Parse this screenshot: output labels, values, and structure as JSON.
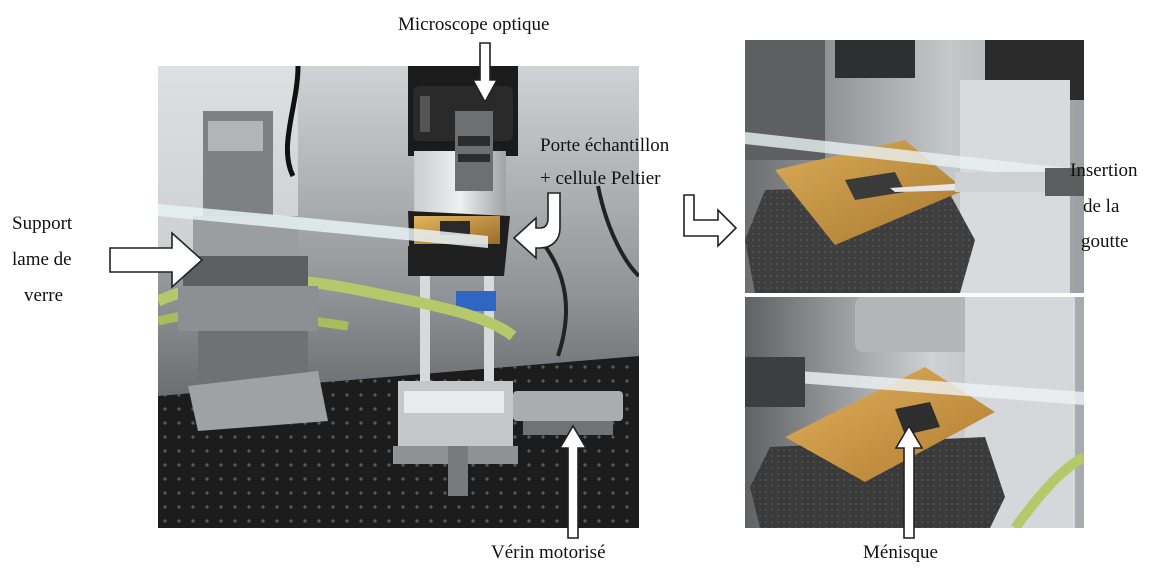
{
  "labels": {
    "microscope": "Microscope optique",
    "porte_line1": "Porte échantillon",
    "porte_line2": "+ cellule Peltier",
    "support_line1": "Support",
    "support_line2": "lame de",
    "support_line3": "verre",
    "verin": "Vérin motorisé",
    "insertion_line1": "Insertion",
    "insertion_line2": "de la",
    "insertion_line3": "goutte",
    "menisque": "Ménisque"
  },
  "colors": {
    "background": "#ffffff",
    "arrow_fill": "#ffffff",
    "arrow_stroke": "#222222",
    "photo_dark": "#1a1a1a",
    "metal": "#b8bcc0",
    "copper": "#c8973f",
    "tube_green": "#b5c96a"
  }
}
